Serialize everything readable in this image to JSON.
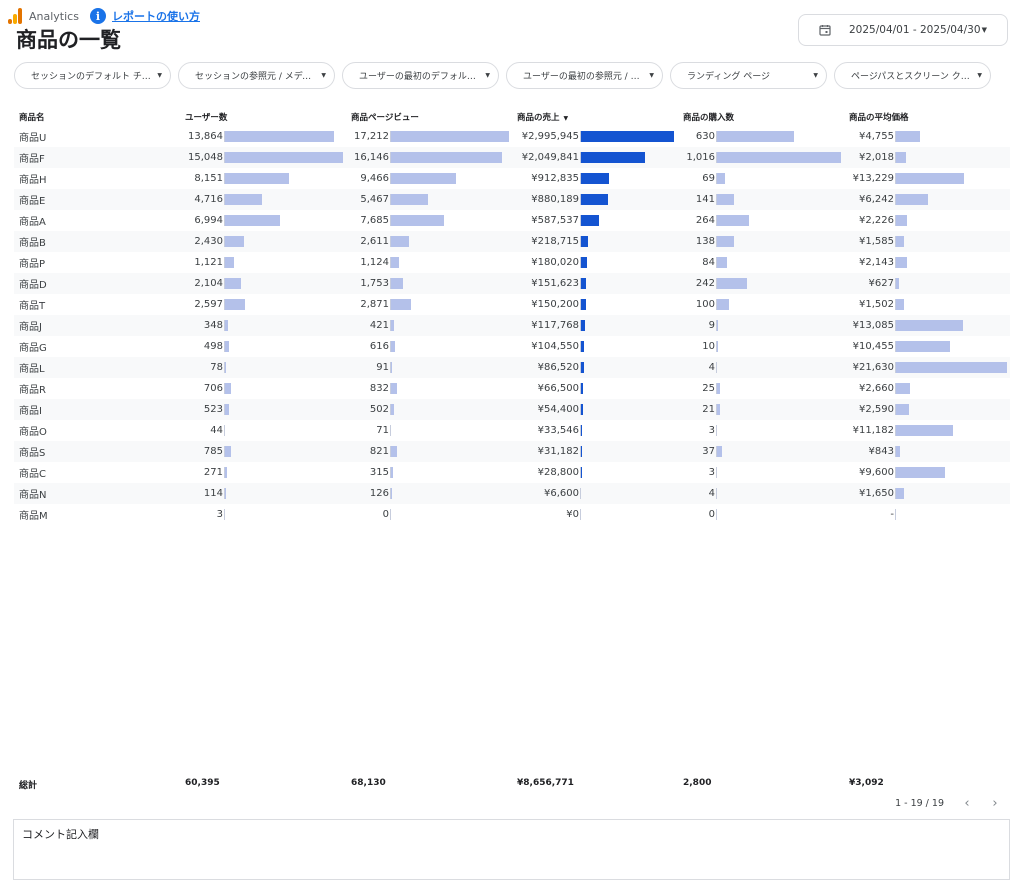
{
  "header": {
    "app_name": "Analytics",
    "help_link": "レポートの使い方",
    "title": "商品の一覧"
  },
  "date_range": "2025/04/01 - 2025/04/30",
  "filters": [
    "セッションのデフォルト チャ…",
    "セッションの参照元 / メディア",
    "ユーザーの最初のデフォルト …",
    "ユーザーの最初の参照元 / メ…",
    "ランディング ページ",
    "ページパスとスクリーン クラス"
  ],
  "table": {
    "headers": [
      "商品名",
      "ユーザー数",
      "商品ページビュー",
      "商品の売上",
      "商品の購入数",
      "商品の平均価格"
    ],
    "sorted_column": "商品の売上",
    "rows": [
      {
        "name": "商品U",
        "users": "13,864",
        "views": "17,212",
        "revenue": "¥2,995,945",
        "purchases": "630",
        "avg_price": "¥4,755"
      },
      {
        "name": "商品F",
        "users": "15,048",
        "views": "16,146",
        "revenue": "¥2,049,841",
        "purchases": "1,016",
        "avg_price": "¥2,018"
      },
      {
        "name": "商品H",
        "users": "8,151",
        "views": "9,466",
        "revenue": "¥912,835",
        "purchases": "69",
        "avg_price": "¥13,229"
      },
      {
        "name": "商品E",
        "users": "4,716",
        "views": "5,467",
        "revenue": "¥880,189",
        "purchases": "141",
        "avg_price": "¥6,242"
      },
      {
        "name": "商品A",
        "users": "6,994",
        "views": "7,685",
        "revenue": "¥587,537",
        "purchases": "264",
        "avg_price": "¥2,226"
      },
      {
        "name": "商品B",
        "users": "2,430",
        "views": "2,611",
        "revenue": "¥218,715",
        "purchases": "138",
        "avg_price": "¥1,585"
      },
      {
        "name": "商品P",
        "users": "1,121",
        "views": "1,124",
        "revenue": "¥180,020",
        "purchases": "84",
        "avg_price": "¥2,143"
      },
      {
        "name": "商品D",
        "users": "2,104",
        "views": "1,753",
        "revenue": "¥151,623",
        "purchases": "242",
        "avg_price": "¥627"
      },
      {
        "name": "商品T",
        "users": "2,597",
        "views": "2,871",
        "revenue": "¥150,200",
        "purchases": "100",
        "avg_price": "¥1,502"
      },
      {
        "name": "商品J",
        "users": "348",
        "views": "421",
        "revenue": "¥117,768",
        "purchases": "9",
        "avg_price": "¥13,085"
      },
      {
        "name": "商品G",
        "users": "498",
        "views": "616",
        "revenue": "¥104,550",
        "purchases": "10",
        "avg_price": "¥10,455"
      },
      {
        "name": "商品L",
        "users": "78",
        "views": "91",
        "revenue": "¥86,520",
        "purchases": "4",
        "avg_price": "¥21,630"
      },
      {
        "name": "商品R",
        "users": "706",
        "views": "832",
        "revenue": "¥66,500",
        "purchases": "25",
        "avg_price": "¥2,660"
      },
      {
        "name": "商品I",
        "users": "523",
        "views": "502",
        "revenue": "¥54,400",
        "purchases": "21",
        "avg_price": "¥2,590"
      },
      {
        "name": "商品O",
        "users": "44",
        "views": "71",
        "revenue": "¥33,546",
        "purchases": "3",
        "avg_price": "¥11,182"
      },
      {
        "name": "商品S",
        "users": "785",
        "views": "821",
        "revenue": "¥31,182",
        "purchases": "37",
        "avg_price": "¥843"
      },
      {
        "name": "商品C",
        "users": "271",
        "views": "315",
        "revenue": "¥28,800",
        "purchases": "3",
        "avg_price": "¥9,600"
      },
      {
        "name": "商品N",
        "users": "114",
        "views": "126",
        "revenue": "¥6,600",
        "purchases": "4",
        "avg_price": "¥1,650"
      },
      {
        "name": "商品M",
        "users": "3",
        "views": "0",
        "revenue": "¥0",
        "purchases": "0",
        "avg_price": "-"
      }
    ],
    "totals": {
      "label": "総計",
      "users": "60,395",
      "views": "68,130",
      "revenue": "¥8,656,771",
      "purchases": "2,800",
      "avg_price": "¥3,092"
    }
  },
  "pagination": {
    "text": "1 - 19 / 19"
  },
  "comment": {
    "label": "コメント記入欄"
  },
  "colors": {
    "bar_light": "#b4c1ea",
    "bar_dark": "#1454d1",
    "link": "#1a73e8"
  },
  "icons": [
    "analytics-logo-icon",
    "info-icon",
    "calendar-icon",
    "chevron-down-icon",
    "sort-desc-icon",
    "prev-page-icon",
    "next-page-icon"
  ]
}
